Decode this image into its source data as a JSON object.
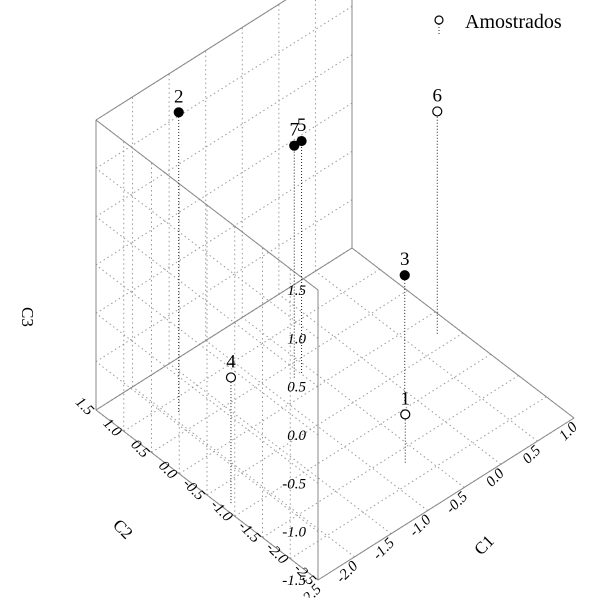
{
  "chart_data": {
    "type": "scatter",
    "title": "",
    "xlabel": "C1",
    "ylabel": "C2",
    "zlabel": "C3",
    "xlim": [
      -2.5,
      1.0
    ],
    "ylim": [
      -2.5,
      1.5
    ],
    "zlim": [
      -1.5,
      1.5
    ],
    "xticks": [
      "-2.5",
      "-2.0",
      "-1.5",
      "-1.0",
      "-0.5",
      "0.0",
      "0.5",
      "1.0"
    ],
    "yticks": [
      "-2.5",
      "-2.0",
      "-1.5",
      "-1.0",
      "-0.5",
      "0.0",
      "0.5",
      "1.0",
      "1.5"
    ],
    "zticks": [
      "-1.5",
      "-1.0",
      "-0.5",
      "0.0",
      "0.5",
      "1.0",
      "1.5"
    ],
    "grid": true,
    "legend": {
      "position": "top-right",
      "entries": [
        "Amostrados"
      ]
    },
    "points": [
      {
        "label": "1",
        "x": -0.7,
        "y": -1.7,
        "z": -1.0,
        "filled": false
      },
      {
        "label": "2",
        "x": -1.9,
        "y": 0.8,
        "z": 1.6,
        "filled": true
      },
      {
        "label": "3",
        "x": -0.1,
        "y": -0.9,
        "z": -0.2,
        "filled": true
      },
      {
        "label": "4",
        "x": -2.4,
        "y": -0.8,
        "z": -0.2,
        "filled": false
      },
      {
        "label": "5",
        "x": -0.6,
        "y": 0.3,
        "z": 0.9,
        "filled": true
      },
      {
        "label": "6",
        "x": 0.8,
        "y": -0.3,
        "z": 0.8,
        "filled": false
      },
      {
        "label": "7",
        "x": -0.7,
        "y": 0.3,
        "z": 0.9,
        "filled": true
      }
    ]
  }
}
